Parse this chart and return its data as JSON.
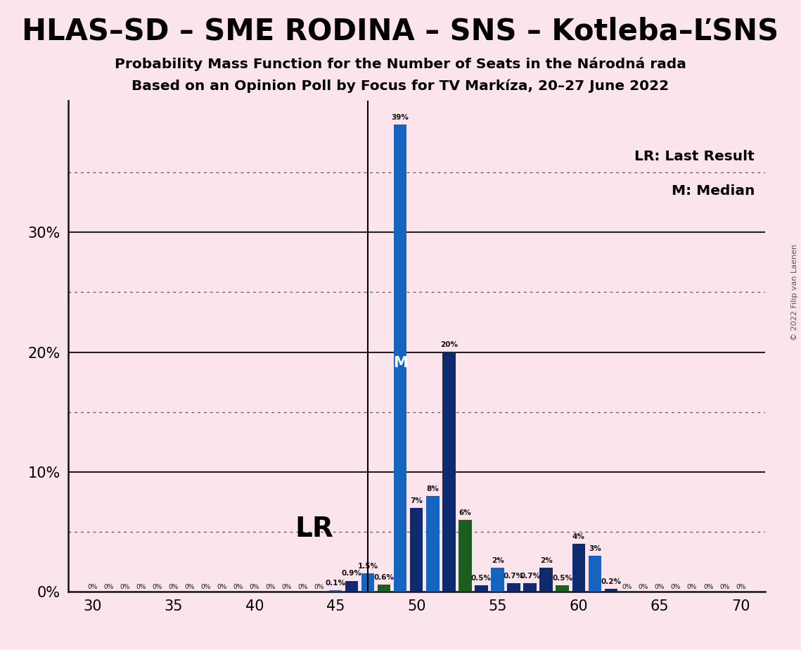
{
  "title": "HLAS–SD – SME RODINA – SNS – Kotleba–ĽSNS",
  "subtitle1": "Probability Mass Function for the Number of Seats in the Národná rada",
  "subtitle2": "Based on an Opinion Poll by Focus for TV Markíza, 20–27 June 2022",
  "copyright": "© 2022 Filip van Laenen",
  "legend_lr": "LR: Last Result",
  "legend_m": "M: Median",
  "lr_label": "LR",
  "median_label": "M",
  "background_color": "#fce4ec",
  "xticks": [
    30,
    35,
    40,
    45,
    50,
    55,
    60,
    65,
    70
  ],
  "ytick_positions": [
    0,
    0.1,
    0.2,
    0.3
  ],
  "ytick_dotted": [
    0.05,
    0.15,
    0.25,
    0.35
  ],
  "ymax": 0.41,
  "lr_seat": 47,
  "median_seat": 49,
  "seats": [
    30,
    31,
    32,
    33,
    34,
    35,
    36,
    37,
    38,
    39,
    40,
    41,
    42,
    43,
    44,
    45,
    46,
    47,
    48,
    49,
    50,
    51,
    52,
    53,
    54,
    55,
    56,
    57,
    58,
    59,
    60,
    61,
    62,
    63,
    64,
    65,
    66,
    67,
    68,
    69,
    70
  ],
  "values": [
    0.0,
    0.0,
    0.0,
    0.0,
    0.0,
    0.0,
    0.0,
    0.0,
    0.0,
    0.0,
    0.0,
    0.0,
    0.0,
    0.0,
    0.0,
    0.001,
    0.009,
    0.015,
    0.006,
    0.39,
    0.07,
    0.08,
    0.2,
    0.06,
    0.005,
    0.02,
    0.007,
    0.007,
    0.02,
    0.005,
    0.04,
    0.03,
    0.002,
    0.0,
    0.0,
    0.0,
    0.0,
    0.0,
    0.0,
    0.0,
    0.0
  ],
  "bar_colors": [
    "#1565c0",
    "#1565c0",
    "#1565c0",
    "#1565c0",
    "#1565c0",
    "#1565c0",
    "#1565c0",
    "#1565c0",
    "#1565c0",
    "#1565c0",
    "#1565c0",
    "#1565c0",
    "#1565c0",
    "#1565c0",
    "#1565c0",
    "#1565c0",
    "#0d2b6e",
    "#1565c0",
    "#1b5e20",
    "#1565c0",
    "#0d2b6e",
    "#1565c0",
    "#0d2b6e",
    "#1b5e20",
    "#0d2b6e",
    "#1565c0",
    "#0d2b6e",
    "#0d2b6e",
    "#0d2b6e",
    "#1b5e20",
    "#0d2b6e",
    "#1565c0",
    "#0d2b6e",
    "#1565c0",
    "#1565c0",
    "#1565c0",
    "#1565c0",
    "#1565c0",
    "#1565c0",
    "#1565c0",
    "#1565c0"
  ],
  "bar_labels": [
    "0%",
    "0%",
    "0%",
    "0%",
    "0%",
    "0%",
    "0%",
    "0%",
    "0%",
    "0%",
    "0%",
    "0%",
    "0%",
    "0%",
    "0%",
    "0.1%",
    "0.9%",
    "1.5%",
    "0.6%",
    "39%",
    "7%",
    "8%",
    "20%",
    "6%",
    "0.5%",
    "2%",
    "0.7%",
    "0.7%",
    "2%",
    "0.5%",
    "4%",
    "3%",
    "0.2%",
    "0%",
    "0%",
    "0%",
    "0%",
    "0%",
    "0%",
    "0%",
    "0%"
  ]
}
